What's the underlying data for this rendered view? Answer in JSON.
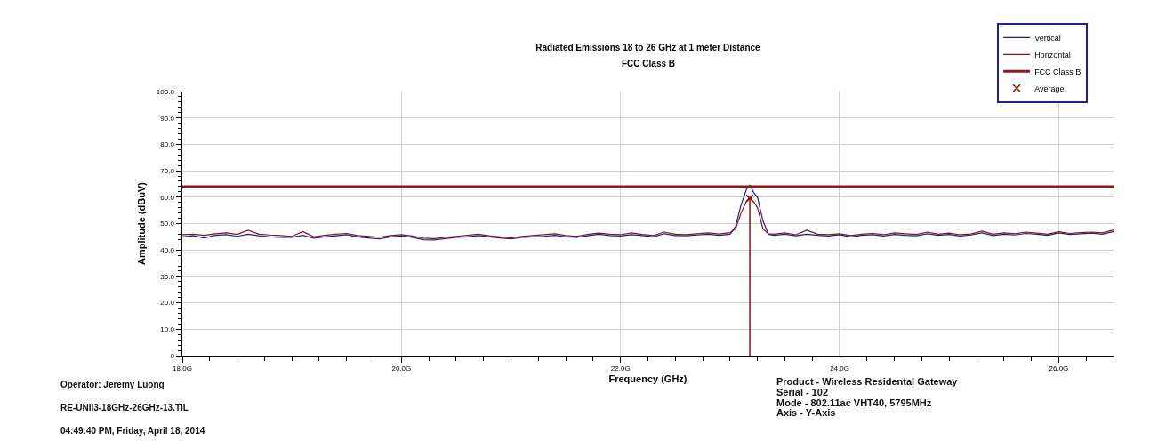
{
  "chart_data": {
    "type": "line",
    "title": "Radiated Emissions 18 to 26 GHz at 1 meter Distance",
    "subtitle": "FCC Class B",
    "xlabel": "Frequency (GHz)",
    "ylabel": "Amplitude (dBuV)",
    "x": [
      18.0,
      18.1,
      18.2,
      18.3,
      18.4,
      18.5,
      18.6,
      18.7,
      18.8,
      18.9,
      19.0,
      19.1,
      19.2,
      19.3,
      19.4,
      19.5,
      19.6,
      19.7,
      19.8,
      19.9,
      20.0,
      20.1,
      20.2,
      20.3,
      20.4,
      20.5,
      20.6,
      20.7,
      20.8,
      20.9,
      21.0,
      21.1,
      21.2,
      21.3,
      21.4,
      21.5,
      21.6,
      21.7,
      21.8,
      21.9,
      22.0,
      22.1,
      22.2,
      22.3,
      22.4,
      22.5,
      22.6,
      22.7,
      22.8,
      22.9,
      23.0,
      23.05,
      23.1,
      23.15,
      23.18,
      23.22,
      23.25,
      23.3,
      23.35,
      23.4,
      23.5,
      23.6,
      23.7,
      23.8,
      23.9,
      24.0,
      24.1,
      24.2,
      24.3,
      24.4,
      24.5,
      24.6,
      24.7,
      24.8,
      24.9,
      25.0,
      25.1,
      25.2,
      25.3,
      25.4,
      25.5,
      25.6,
      25.7,
      25.8,
      25.9,
      26.0,
      26.1,
      26.2,
      26.3,
      26.4,
      26.5
    ],
    "series": [
      {
        "name": "Vertical",
        "color": "#1f1f8f",
        "values": [
          45.0,
          45.4,
          44.6,
          45.6,
          45.8,
          45.2,
          46.0,
          45.4,
          45.0,
          44.8,
          44.8,
          45.6,
          44.5,
          45.0,
          45.4,
          45.8,
          45.0,
          44.6,
          44.2,
          45.0,
          45.3,
          44.8,
          43.9,
          43.8,
          44.3,
          44.8,
          45.0,
          45.5,
          45.0,
          44.6,
          44.2,
          44.8,
          45.0,
          45.2,
          45.6,
          45.0,
          44.8,
          45.4,
          46.0,
          45.5,
          45.3,
          45.8,
          45.5,
          45.0,
          46.2,
          45.5,
          45.4,
          45.7,
          46.0,
          45.6,
          46.0,
          49.0,
          57.0,
          63.0,
          64.5,
          61.5,
          60.0,
          51.0,
          46.0,
          45.6,
          46.0,
          45.4,
          46.0,
          45.6,
          45.3,
          45.8,
          45.0,
          45.6,
          45.8,
          45.3,
          45.9,
          45.6,
          45.4,
          46.2,
          45.6,
          45.9,
          45.3,
          45.7,
          46.5,
          45.5,
          46.0,
          45.7,
          46.3,
          46.0,
          45.6,
          46.5,
          45.9,
          46.2,
          46.4,
          46.0,
          47.0
        ]
      },
      {
        "name": "Horizontal",
        "color": "#8b1010",
        "values": [
          45.8,
          46.0,
          45.6,
          46.2,
          46.5,
          45.9,
          47.5,
          46.0,
          45.7,
          45.5,
          45.2,
          47.0,
          45.0,
          45.6,
          46.0,
          46.3,
          45.5,
          45.2,
          44.8,
          45.5,
          45.8,
          45.3,
          44.5,
          44.3,
          44.8,
          45.2,
          45.6,
          46.0,
          45.4,
          45.0,
          44.6,
          45.2,
          45.5,
          45.8,
          46.2,
          45.5,
          45.2,
          45.9,
          46.4,
          46.0,
          45.8,
          46.5,
          45.9,
          45.5,
          46.8,
          46.0,
          45.8,
          46.2,
          46.5,
          46.1,
          46.6,
          48.0,
          54.0,
          58.5,
          60.0,
          58.0,
          56.0,
          48.0,
          46.2,
          46.0,
          46.5,
          45.8,
          47.5,
          46.0,
          45.8,
          46.2,
          45.5,
          46.0,
          46.3,
          45.8,
          46.5,
          46.2,
          45.9,
          46.8,
          46.0,
          46.4,
          45.8,
          46.1,
          47.2,
          46.0,
          46.5,
          46.2,
          46.8,
          46.4,
          46.0,
          46.9,
          46.3,
          46.6,
          46.8,
          46.5,
          47.6
        ]
      },
      {
        "name": "FCC Class B",
        "color": "#8b1a1a",
        "x": [
          18.0,
          26.5
        ],
        "values": [
          64,
          64
        ]
      },
      {
        "name": "Average",
        "type": "scatter",
        "marker": "cross",
        "color": "#8b1010",
        "x": [
          23.18
        ],
        "values": [
          59.5
        ],
        "errors": [
          [
            0,
            59.5
          ]
        ]
      }
    ],
    "xlim": [
      18.0,
      26.5
    ],
    "xticks": [
      {
        "value": 18,
        "label": "18.0G"
      },
      {
        "value": 20,
        "label": "20.0G"
      },
      {
        "value": 22,
        "label": "22.0G"
      },
      {
        "value": 24,
        "label": "24.0G"
      },
      {
        "value": 26,
        "label": "26.0G"
      }
    ],
    "ylim": [
      0,
      100
    ],
    "yticks": [
      0,
      {
        "value": 10,
        "label": "10.0"
      },
      {
        "value": 20,
        "label": "20.0"
      },
      {
        "value": 30,
        "label": "30.0"
      },
      {
        "value": 40,
        "label": "40.0"
      },
      {
        "value": 50,
        "label": "50.0"
      },
      {
        "value": 60,
        "label": "60.0"
      },
      {
        "value": 70,
        "label": "70.0"
      },
      {
        "value": 80,
        "label": "80.0"
      },
      {
        "value": 90,
        "label": "90.0"
      },
      {
        "value": 100,
        "label": "100.0"
      }
    ],
    "grid": true,
    "legend": "top right",
    "marker": "none",
    "line_style": "solid",
    "annotations": [
      "Operator: Jeremy Luong",
      "RE-UNII3-18GHz-26GHz-13.TIL",
      "04:49:40 PM, Friday, April 18, 2014",
      "Product - Wireless Residental Gateway",
      "Serial - 102",
      "Mode - 802.11ac VHT40, 5795MHz",
      "Axis - Y-Axis"
    ]
  }
}
